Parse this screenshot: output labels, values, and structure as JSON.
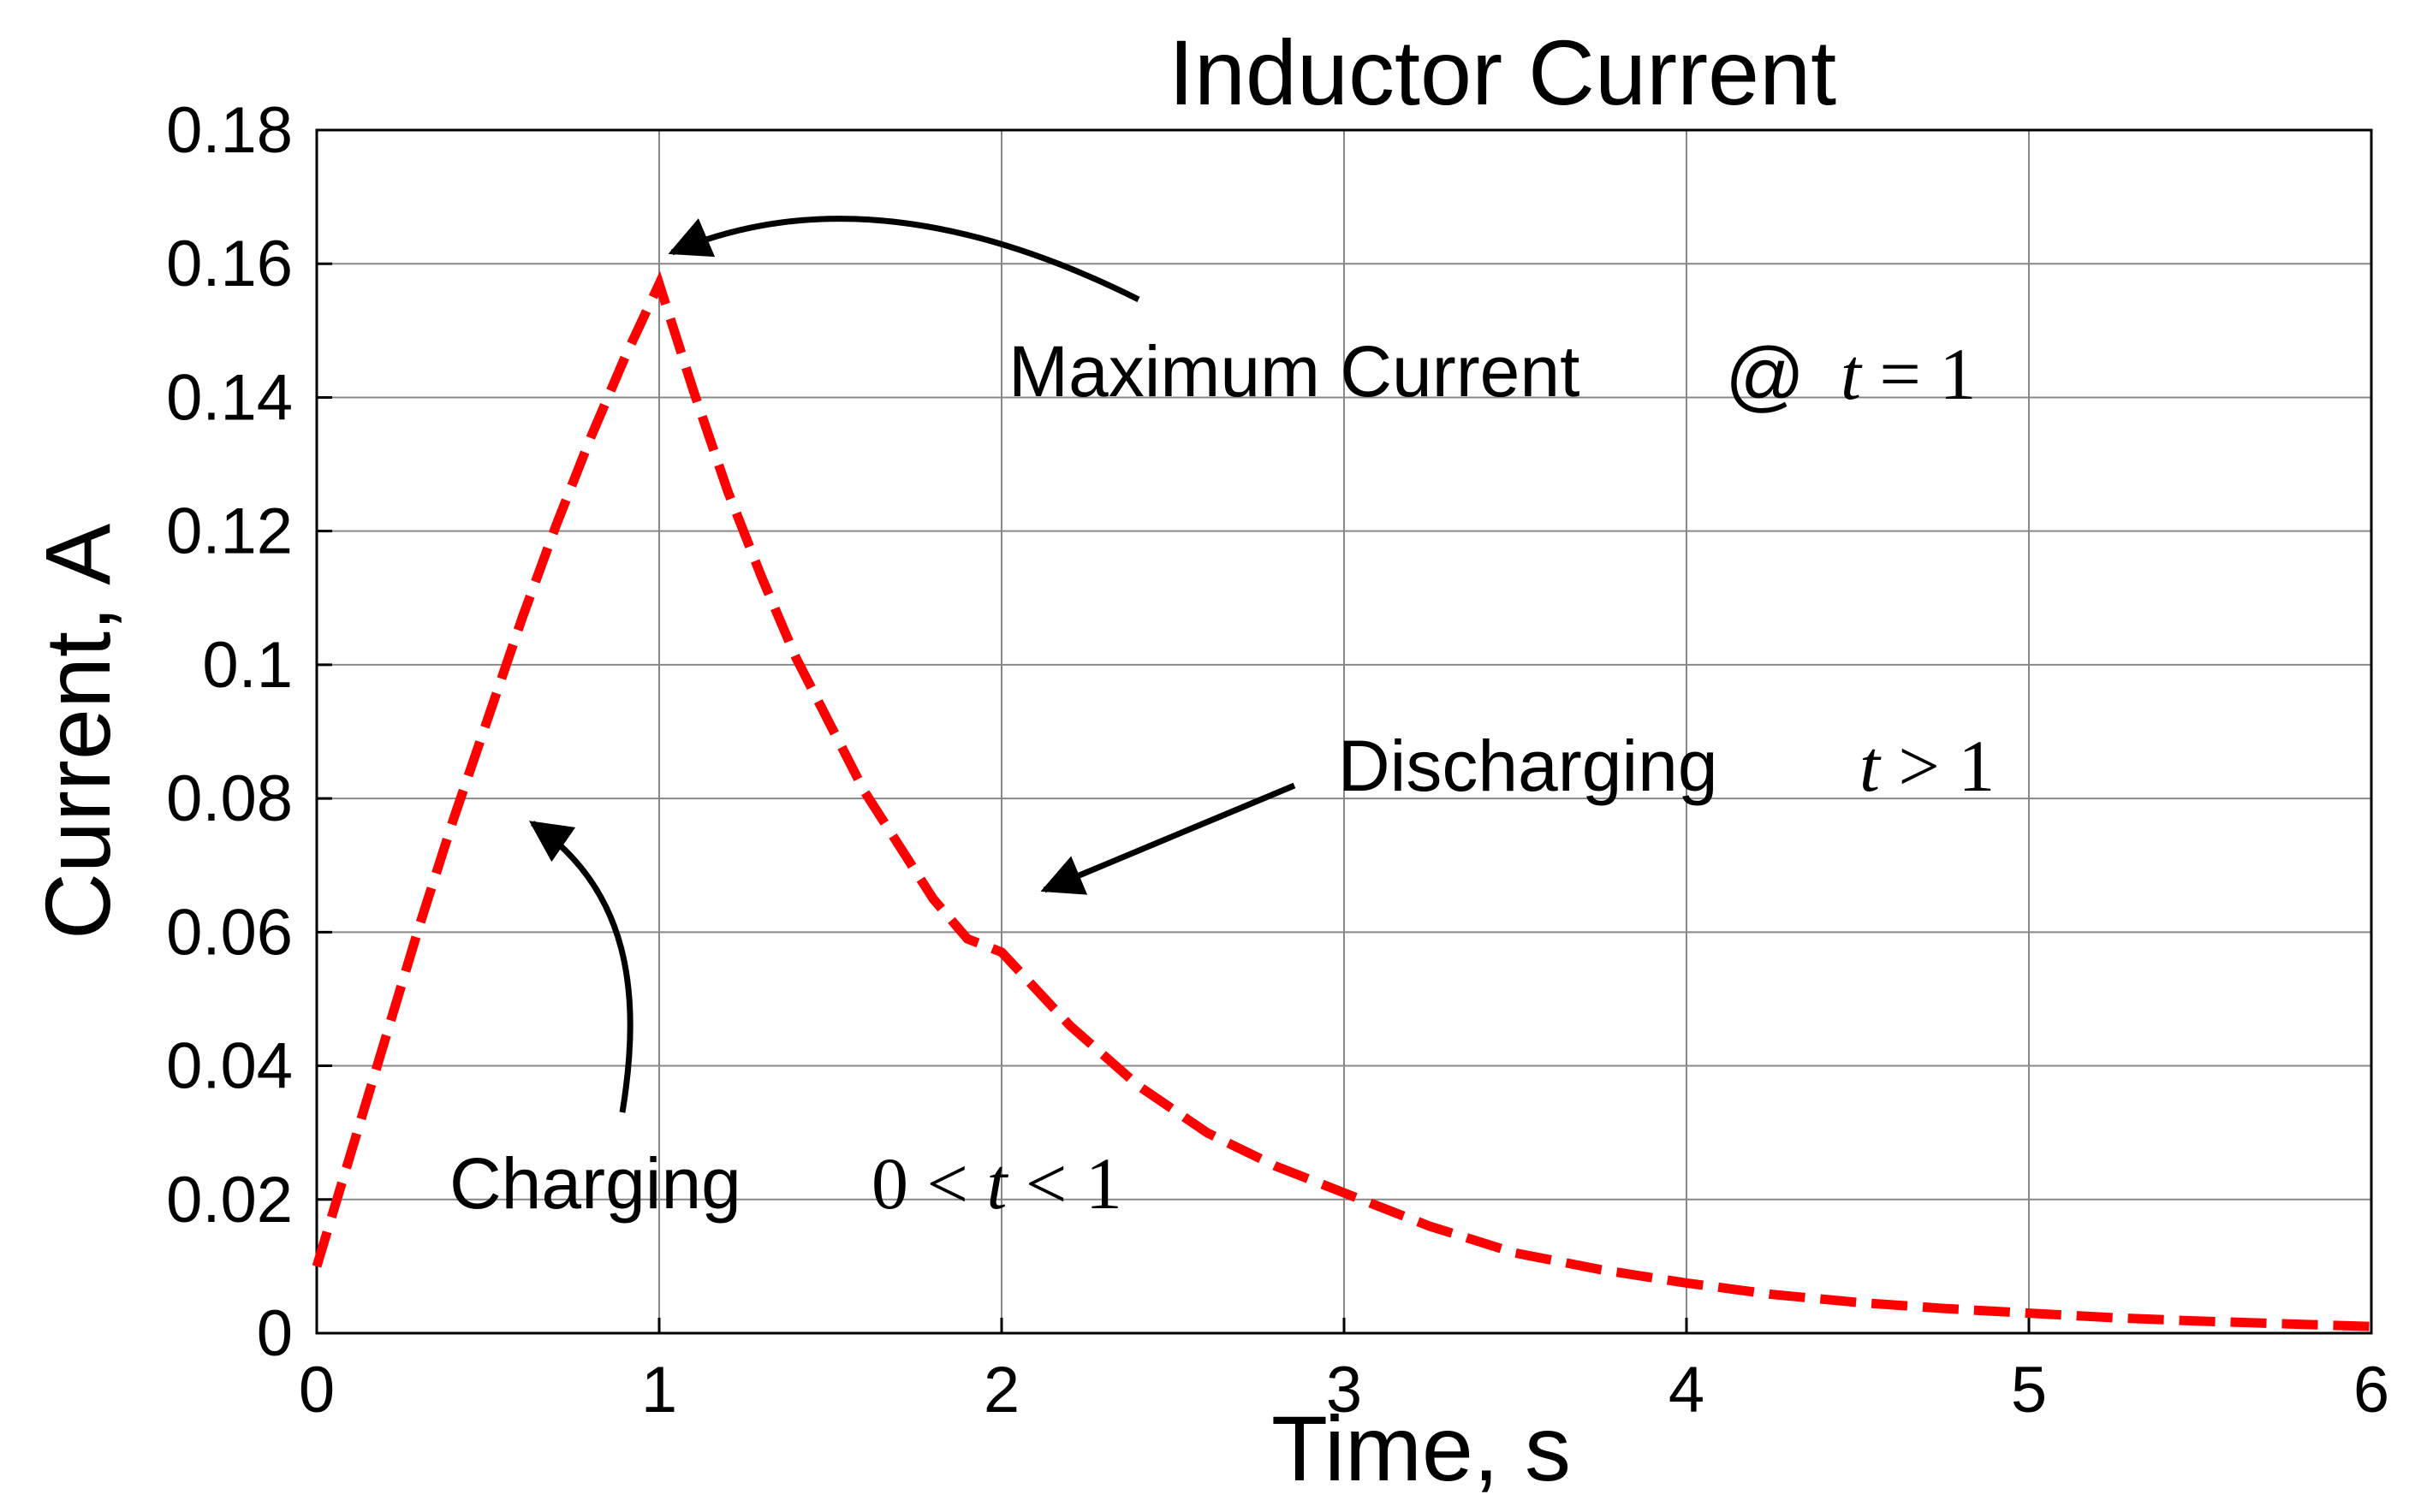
{
  "chart_data": {
    "type": "line",
    "title": "Inductor Current",
    "xlabel": "Time, s",
    "ylabel": "Current, A",
    "xlim": [
      0,
      6
    ],
    "ylim": [
      0,
      0.18
    ],
    "xticks": [
      "0",
      "1",
      "2",
      "3",
      "4",
      "5",
      "6"
    ],
    "yticks": [
      "0",
      "0.02",
      "0.04",
      "0.06",
      "0.08",
      "0.1",
      "0.12",
      "0.14",
      "0.16",
      "0.18"
    ],
    "grid": true,
    "line_color": "#ff0000",
    "line_style": "dashed",
    "series": [
      {
        "x": [
          0,
          0.1,
          0.2,
          0.3,
          0.4,
          0.5,
          0.6,
          0.7,
          0.8,
          0.9,
          1.0,
          1.1,
          1.2,
          1.3,
          1.4,
          1.5,
          1.6,
          1.7,
          1.8,
          1.9,
          2.0,
          2.2,
          2.4,
          2.6,
          2.8,
          3.0,
          3.25,
          3.5,
          3.75,
          4.0,
          4.25,
          4.5,
          4.75,
          5.0,
          5.25,
          5.5,
          5.75,
          6.0
        ],
        "y": [
          0.01,
          0.027,
          0.044,
          0.061,
          0.077,
          0.092,
          0.107,
          0.121,
          0.134,
          0.146,
          0.157,
          0.141,
          0.126,
          0.113,
          0.101,
          0.091,
          0.081,
          0.073,
          0.065,
          0.059,
          0.057,
          0.046,
          0.037,
          0.03,
          0.025,
          0.021,
          0.016,
          0.012,
          0.0095,
          0.0075,
          0.0058,
          0.0046,
          0.0037,
          0.003,
          0.0023,
          0.0018,
          0.0014,
          0.001
        ]
      }
    ],
    "annotations": {
      "max": {
        "label": "Maximum Current",
        "at": "@",
        "math_var": "t",
        "math_rest": " = 1"
      },
      "discharging": {
        "label": "Discharging",
        "math_var": "t",
        "math_rest": " > 1"
      },
      "charging": {
        "label": "Charging",
        "math_pre": "0 < ",
        "math_var": "t",
        "math_rest": " < 1"
      }
    }
  }
}
